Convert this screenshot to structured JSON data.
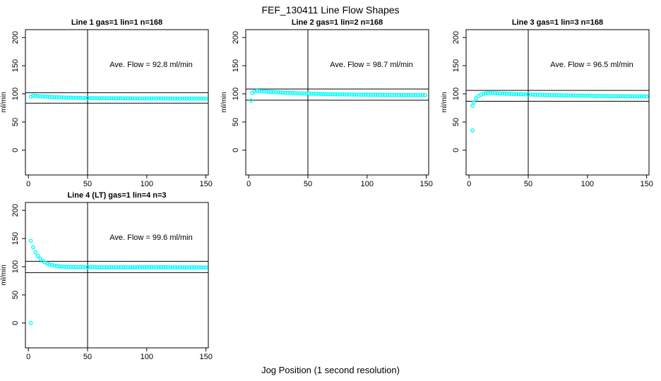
{
  "main": {
    "title": "FEF_130411  Line Flow Shapes",
    "xlabel": "Jog Position (1 second resolution)"
  },
  "colors": {
    "points": "#00FFFF",
    "axis": "#000000",
    "background": "#FFFFFF"
  },
  "chart_data": [
    {
      "type": "scatter",
      "title": "Line 1 gas=1 lin=1 n=168",
      "annotation": "Ave. Flow =  92.8  ml/min",
      "ave_flow_ml_min": 92.8,
      "ylabel": "ml/min",
      "xticks": [
        0,
        50,
        100,
        150
      ],
      "yticks": [
        0,
        50,
        100,
        150,
        200
      ],
      "xlim": [
        -2.5,
        152
      ],
      "ylim": [
        -44,
        214
      ],
      "vline_x": 50,
      "hlines": [
        102.1,
        83.5
      ],
      "band_x_start": 2,
      "band_x_step": 2,
      "band_y": [
        95.0,
        96.8,
        96.4,
        96.1,
        95.7,
        95.4,
        95.2,
        94.9,
        94.7,
        94.4,
        94.2,
        94.0,
        93.9,
        93.7,
        93.6,
        93.4,
        93.3,
        93.2,
        93.1,
        93.0,
        92.9,
        92.8,
        92.7,
        92.7,
        92.6,
        92.5,
        92.5,
        92.4,
        92.4,
        92.3,
        92.3,
        92.3,
        92.2,
        92.2,
        92.2,
        92.1,
        92.1,
        92.1,
        92.1,
        92.0,
        92.0,
        92.0,
        92.0,
        92.0,
        91.9,
        91.9,
        91.9,
        91.9,
        91.9,
        91.9,
        91.9,
        91.8,
        91.8,
        91.8,
        91.8,
        91.8,
        91.8,
        91.8,
        91.8,
        91.8,
        91.7,
        91.7,
        91.7,
        91.7,
        91.7,
        91.7,
        91.7,
        91.7,
        91.6,
        91.6,
        91.6,
        91.6,
        91.6,
        91.6,
        91.6
      ],
      "outliers": []
    },
    {
      "type": "scatter",
      "title": "Line 2 gas=1 lin=2 n=168",
      "annotation": "Ave. Flow =  98.7  ml/min",
      "ave_flow_ml_min": 98.7,
      "ylabel": "ml/min",
      "xticks": [
        0,
        50,
        100,
        150
      ],
      "yticks": [
        0,
        50,
        100,
        150,
        200
      ],
      "xlim": [
        -2.5,
        152
      ],
      "ylim": [
        -44,
        214
      ],
      "vline_x": 50,
      "hlines": [
        108.6,
        88.8
      ],
      "band_x_start": 3,
      "band_x_step": 2,
      "band_y": [
        101.5,
        104.2,
        105.3,
        105.0,
        104.6,
        104.3,
        104.0,
        103.7,
        103.5,
        103.2,
        102.9,
        102.7,
        102.5,
        102.2,
        102.0,
        101.8,
        101.6,
        101.5,
        101.3,
        101.1,
        101.0,
        100.8,
        100.6,
        100.5,
        100.4,
        100.2,
        100.1,
        100.0,
        99.9,
        99.8,
        99.7,
        99.6,
        99.5,
        99.4,
        99.3,
        99.2,
        99.1,
        99.1,
        99.0,
        98.9,
        98.9,
        98.8,
        98.7,
        98.7,
        98.6,
        98.6,
        98.5,
        98.5,
        98.4,
        98.4,
        98.3,
        98.3,
        98.3,
        98.2,
        98.2,
        98.1,
        98.1,
        98.1,
        98.1,
        98.0,
        98.0,
        98.0,
        97.9,
        97.9,
        97.9,
        97.9,
        97.9,
        97.8,
        97.8,
        97.8,
        97.8,
        97.8,
        97.8,
        97.7
      ],
      "outliers": [
        [
          2,
          88
        ]
      ]
    },
    {
      "type": "scatter",
      "title": "Line 3 gas=1 lin=3 n=168",
      "annotation": "Ave. Flow =  96.5  ml/min",
      "ave_flow_ml_min": 96.5,
      "ylabel": "ml/min",
      "xticks": [
        0,
        50,
        100,
        150
      ],
      "yticks": [
        0,
        50,
        100,
        150,
        200
      ],
      "xlim": [
        -2.5,
        152
      ],
      "ylim": [
        -44,
        214
      ],
      "vline_x": 50,
      "hlines": [
        106.2,
        86.9
      ],
      "band_x_start": 4,
      "band_x_step": 2,
      "band_y": [
        85.0,
        92.0,
        96.0,
        98.5,
        100.0,
        101.0,
        101.5,
        101.3,
        101.1,
        101.0,
        100.8,
        100.6,
        100.5,
        100.3,
        100.1,
        100.0,
        99.8,
        99.7,
        99.6,
        99.4,
        99.3,
        99.2,
        99.0,
        98.9,
        98.8,
        98.7,
        98.5,
        98.4,
        98.3,
        98.2,
        98.1,
        98.0,
        97.9,
        97.8,
        97.7,
        97.6,
        97.5,
        97.5,
        97.4,
        97.3,
        97.2,
        97.1,
        97.0,
        97.0,
        96.9,
        96.8,
        96.8,
        96.7,
        96.6,
        96.6,
        96.5,
        96.4,
        96.4,
        96.3,
        96.3,
        96.2,
        96.1,
        96.1,
        96.0,
        96.0,
        95.9,
        95.9,
        95.8,
        95.8,
        95.8,
        95.7,
        95.7,
        95.6,
        95.6,
        95.6,
        95.5,
        95.5,
        95.4,
        95.4
      ],
      "outliers": [
        [
          3,
          35
        ],
        [
          3,
          79
        ]
      ]
    },
    {
      "type": "scatter",
      "title": "Line 4 (LT) gas=1 lin=4 n=3",
      "annotation": "Ave. Flow =  99.6  ml/min",
      "ave_flow_ml_min": 99.6,
      "ylabel": "ml/min",
      "xticks": [
        0,
        50,
        100,
        150
      ],
      "yticks": [
        0,
        50,
        100,
        150,
        200
      ],
      "xlim": [
        -2.5,
        152
      ],
      "ylim": [
        -44,
        214
      ],
      "vline_x": 50,
      "hlines": [
        109.6,
        89.6
      ],
      "band_x_start": 2,
      "band_x_step": 2,
      "band_y": [
        146.2,
        134.5,
        125.7,
        119.1,
        114.2,
        110.5,
        107.7,
        105.6,
        104.0,
        102.8,
        101.9,
        101.2,
        100.7,
        100.3,
        100.1,
        99.8,
        99.7,
        99.6,
        99.5,
        99.5,
        99.4,
        99.4,
        99.4,
        99.3,
        99.3,
        99.3,
        99.3,
        99.3,
        99.2,
        99.2,
        99.2,
        99.2,
        99.2,
        99.2,
        99.2,
        99.2,
        99.2,
        99.1,
        99.1,
        99.1,
        99.1,
        99.1,
        99.1,
        99.1,
        99.1,
        99.1,
        99.1,
        99.0,
        99.0,
        99.0,
        99.0,
        99.0,
        99.0,
        99.0,
        99.0,
        99.0,
        99.0,
        99.0,
        99.0,
        98.9,
        98.9,
        98.9,
        98.9,
        98.9,
        98.9,
        98.9,
        98.9,
        98.9,
        98.9,
        98.9,
        98.8,
        98.8,
        98.8,
        98.8,
        98.8
      ],
      "outliers": [
        [
          2,
          0
        ]
      ]
    }
  ]
}
